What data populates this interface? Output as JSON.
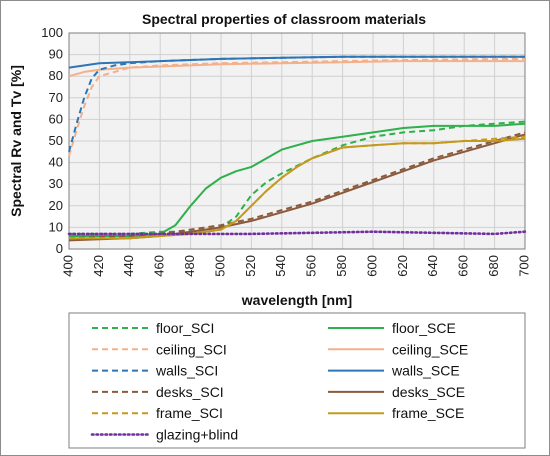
{
  "chart_data": {
    "type": "line",
    "title": "Spectral properties of classroom materials",
    "xlabel": "wavelength  [nm]",
    "ylabel": "Spectral Rv and Tv [%]",
    "xlim": [
      400,
      700
    ],
    "ylim": [
      0,
      100
    ],
    "xticks": [
      400,
      420,
      440,
      460,
      480,
      500,
      520,
      540,
      560,
      580,
      600,
      620,
      640,
      660,
      680,
      700
    ],
    "yticks": [
      0,
      10,
      20,
      30,
      40,
      50,
      60,
      70,
      80,
      90,
      100
    ],
    "grid": true,
    "legend_position": "bottom",
    "series": [
      {
        "name": "floor_SCI",
        "style": "dashed",
        "color": "#2eb04a",
        "x": [
          400,
          420,
          440,
          460,
          480,
          500,
          510,
          520,
          530,
          540,
          560,
          580,
          600,
          620,
          640,
          660,
          680,
          700
        ],
        "y": [
          7,
          7,
          7,
          8,
          8,
          10,
          15,
          25,
          31,
          35,
          42,
          48,
          52,
          54,
          55,
          57,
          58,
          59
        ]
      },
      {
        "name": "floor_SCE",
        "style": "solid",
        "color": "#2eb04a",
        "x": [
          400,
          420,
          440,
          460,
          470,
          480,
          490,
          500,
          510,
          520,
          530,
          540,
          560,
          580,
          600,
          620,
          640,
          660,
          680,
          700
        ],
        "y": [
          6,
          6,
          6,
          7,
          11,
          20,
          28,
          33,
          36,
          38,
          42,
          46,
          50,
          52,
          54,
          56,
          57,
          57,
          57,
          58
        ]
      },
      {
        "name": "ceiling_SCI",
        "style": "dashed",
        "color": "#f4b08a",
        "x": [
          400,
          405,
          410,
          415,
          420,
          430,
          440,
          460,
          480,
          500,
          540,
          580,
          620,
          660,
          700
        ],
        "y": [
          43,
          55,
          66,
          75,
          80,
          82,
          84,
          85,
          85.5,
          86,
          86.5,
          87,
          87.5,
          87.8,
          88
        ]
      },
      {
        "name": "ceiling_SCE",
        "style": "solid",
        "color": "#f4b08a",
        "x": [
          400,
          410,
          420,
          440,
          460,
          480,
          500,
          540,
          580,
          620,
          660,
          700
        ],
        "y": [
          80,
          82,
          83,
          84,
          84.5,
          85,
          85.5,
          86,
          86.5,
          87,
          87,
          87
        ]
      },
      {
        "name": "walls_SCI",
        "style": "dashed",
        "color": "#2e75b6",
        "x": [
          400,
          405,
          410,
          415,
          420,
          430,
          440,
          460,
          480,
          500,
          540,
          580,
          620,
          660,
          700
        ],
        "y": [
          45,
          58,
          70,
          79,
          83,
          85,
          86,
          87,
          87.5,
          88,
          88.5,
          89,
          89,
          89,
          89
        ]
      },
      {
        "name": "walls_SCE",
        "style": "solid",
        "color": "#2e75b6",
        "x": [
          400,
          420,
          440,
          460,
          480,
          500,
          540,
          580,
          620,
          660,
          700
        ],
        "y": [
          84,
          86,
          86.5,
          87,
          87.5,
          88,
          88.5,
          89,
          89,
          89,
          89
        ]
      },
      {
        "name": "desks_SCI",
        "style": "dashed",
        "color": "#8b5a3c",
        "x": [
          400,
          420,
          440,
          460,
          480,
          500,
          520,
          540,
          560,
          580,
          600,
          620,
          640,
          660,
          680,
          700
        ],
        "y": [
          5,
          5.5,
          6,
          7,
          9,
          11,
          14,
          18,
          22,
          27,
          32,
          37,
          42,
          46,
          50,
          54
        ]
      },
      {
        "name": "desks_SCE",
        "style": "solid",
        "color": "#8b5a3c",
        "x": [
          400,
          420,
          440,
          460,
          480,
          500,
          520,
          540,
          560,
          580,
          600,
          620,
          640,
          660,
          680,
          700
        ],
        "y": [
          4,
          4.5,
          5,
          6,
          8,
          10,
          13,
          17,
          21,
          26,
          31,
          36,
          41,
          45,
          49,
          53
        ]
      },
      {
        "name": "frame_SCI",
        "style": "dashed",
        "color": "#c49a1e",
        "x": [
          400,
          420,
          440,
          460,
          480,
          500,
          510,
          520,
          530,
          540,
          550,
          560,
          580,
          600,
          620,
          640,
          660,
          680,
          700
        ],
        "y": [
          5,
          5,
          5,
          6,
          7,
          9,
          13,
          20,
          27,
          33,
          38,
          42,
          47,
          48,
          49,
          49,
          50,
          51,
          52
        ]
      },
      {
        "name": "frame_SCE",
        "style": "solid",
        "color": "#c49a1e",
        "x": [
          400,
          420,
          440,
          460,
          480,
          500,
          510,
          520,
          530,
          540,
          550,
          560,
          580,
          600,
          620,
          640,
          660,
          680,
          700
        ],
        "y": [
          5,
          5,
          5,
          6,
          7,
          9,
          13,
          20,
          27,
          33,
          38,
          42,
          47,
          48,
          49,
          49,
          50,
          50,
          51
        ]
      },
      {
        "name": "glazing+blind",
        "style": "dotted",
        "color": "#7030a0",
        "x": [
          400,
          440,
          480,
          520,
          560,
          600,
          640,
          680,
          700
        ],
        "y": [
          7,
          7,
          7,
          7,
          7.5,
          8,
          7.5,
          7,
          8
        ]
      }
    ],
    "legend": [
      {
        "name": "floor_SCI"
      },
      {
        "name": "floor_SCE"
      },
      {
        "name": "ceiling_SCI"
      },
      {
        "name": "ceiling_SCE"
      },
      {
        "name": "walls_SCI"
      },
      {
        "name": "walls_SCE"
      },
      {
        "name": "desks_SCI"
      },
      {
        "name": "desks_SCE"
      },
      {
        "name": "frame_SCI"
      },
      {
        "name": "frame_SCE"
      },
      {
        "name": "glazing+blind"
      }
    ]
  }
}
